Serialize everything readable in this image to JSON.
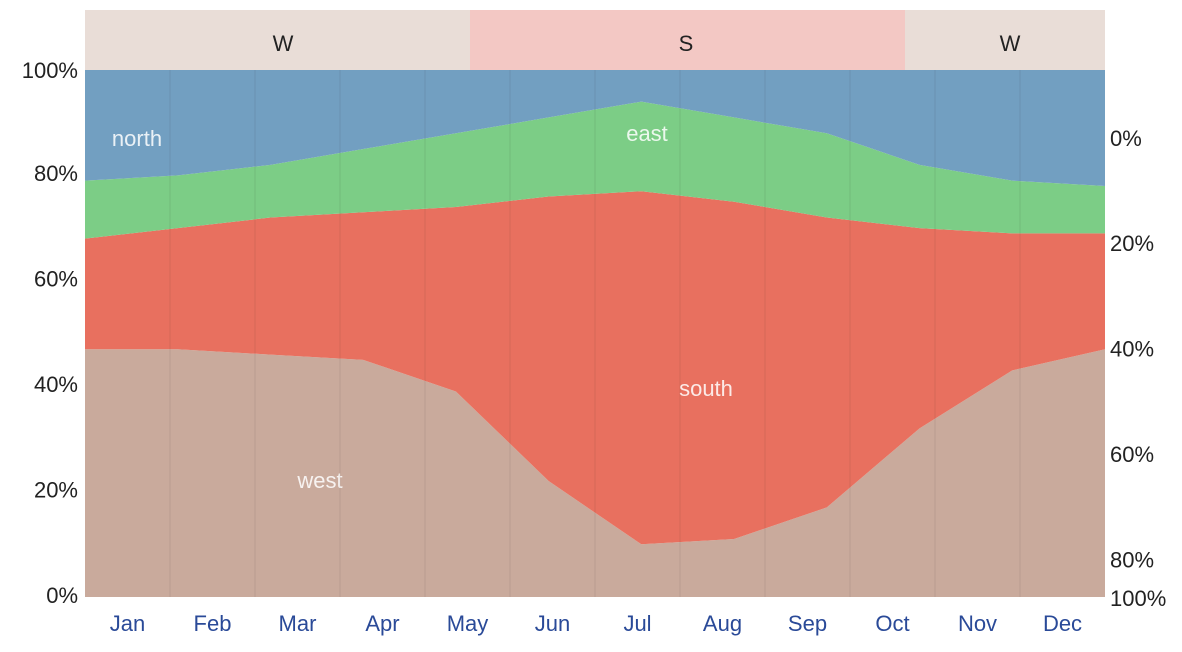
{
  "chart_data": {
    "type": "area",
    "stacked": true,
    "categories": [
      "Jan",
      "Feb",
      "Mar",
      "Apr",
      "May",
      "Jun",
      "Jul",
      "Aug",
      "Sep",
      "Oct",
      "Nov",
      "Dec"
    ],
    "series": [
      {
        "name": "west",
        "color": "#c9aa9c",
        "values": [
          47,
          47,
          46,
          45,
          39,
          22,
          10,
          11,
          17,
          32,
          43,
          47
        ]
      },
      {
        "name": "south",
        "color": "#e8705f",
        "values": [
          21,
          23,
          26,
          28,
          35,
          54,
          67,
          64,
          55,
          38,
          26,
          22
        ]
      },
      {
        "name": "east",
        "color": "#7ccd86",
        "values": [
          11,
          10,
          10,
          12,
          14,
          15,
          17,
          16,
          16,
          12,
          10,
          9
        ]
      },
      {
        "name": "north",
        "color": "#729fc1",
        "values": [
          21,
          20,
          18,
          15,
          12,
          9,
          6,
          9,
          12,
          18,
          21,
          22
        ]
      }
    ],
    "seasons": [
      "W",
      "S",
      "W"
    ],
    "ylim": [
      0,
      100
    ],
    "yticks": [
      {
        "value": 0,
        "label": "0%"
      },
      {
        "value": 20,
        "label": "20%"
      },
      {
        "value": 40,
        "label": "40%"
      },
      {
        "value": 60,
        "label": "60%"
      },
      {
        "value": 80,
        "label": "80%"
      },
      {
        "value": 100,
        "label": "100%"
      }
    ],
    "y2lim": [
      100,
      0
    ],
    "y2ticks": [
      {
        "value": 0,
        "label": "0%"
      },
      {
        "value": 20,
        "label": "20%"
      },
      {
        "value": 40,
        "label": "40%"
      },
      {
        "value": 60,
        "label": "60%"
      },
      {
        "value": 80,
        "label": "80%"
      },
      {
        "value": 100,
        "label": "100%"
      }
    ],
    "grid": true
  }
}
